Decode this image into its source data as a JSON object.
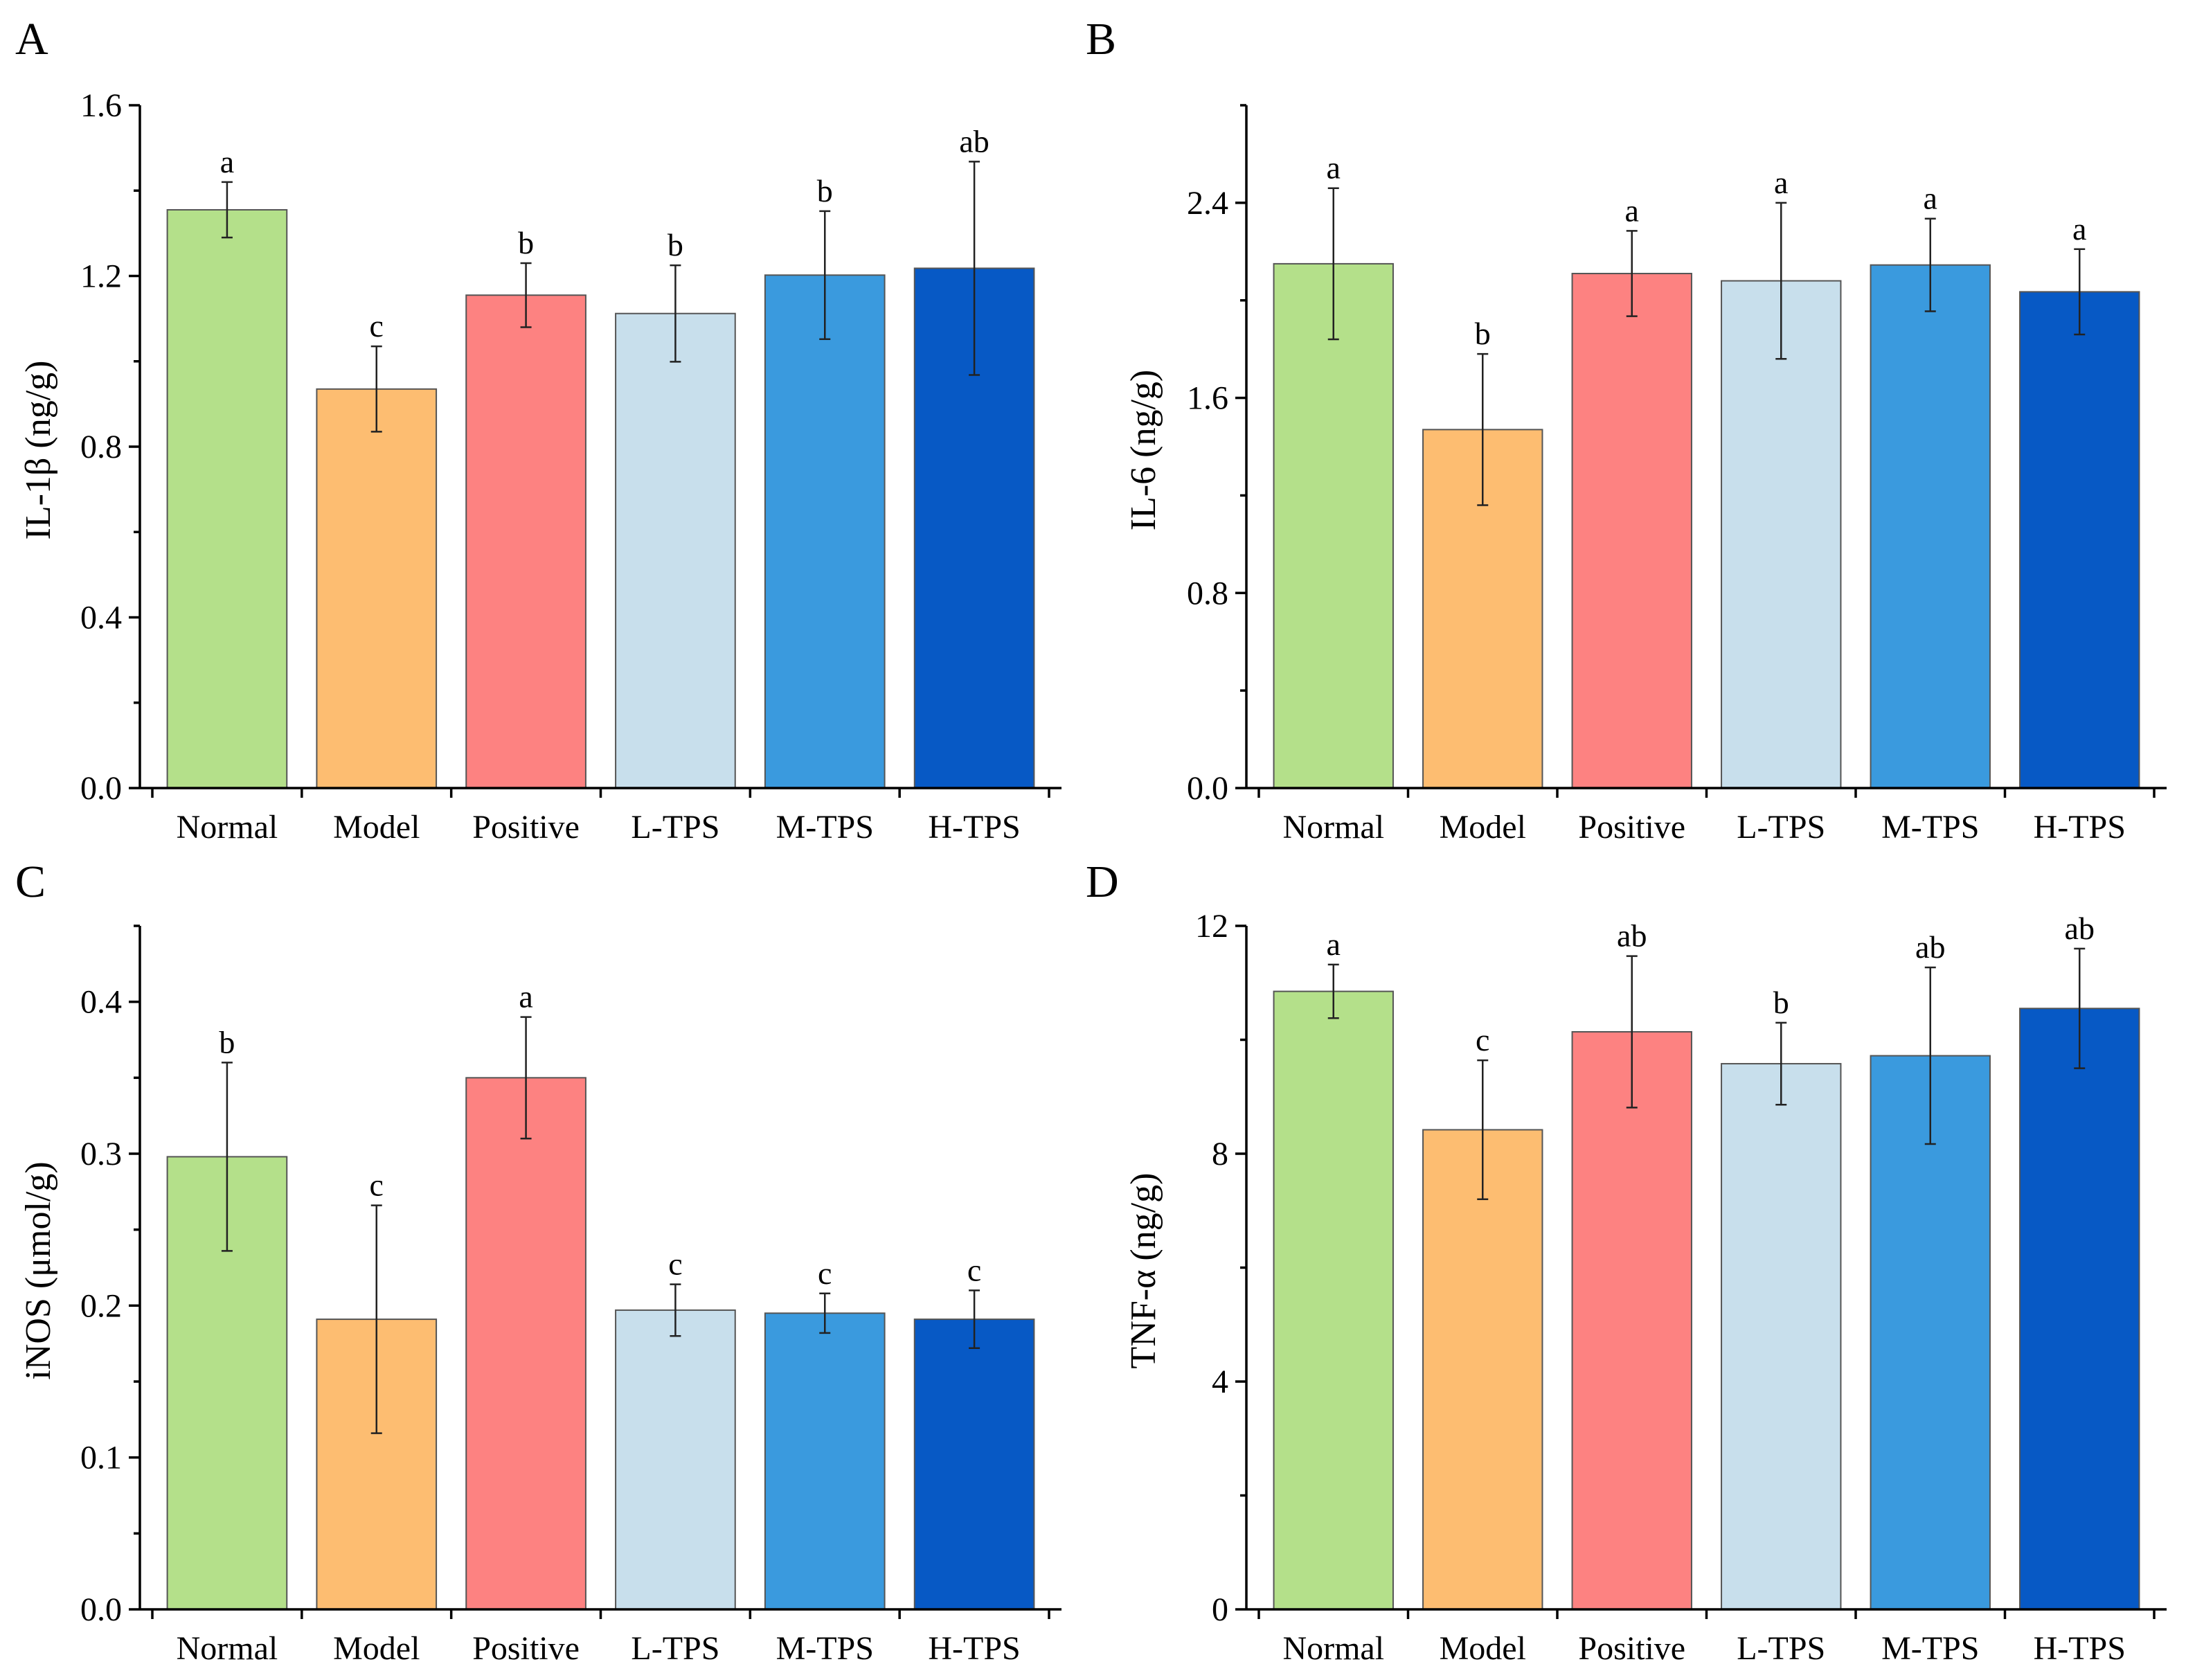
{
  "chart_data": [
    {
      "type": "bar",
      "panel": "A",
      "ylabel": "IL-1β (ng/g)",
      "categories": [
        "Normal",
        "Model",
        "Positive",
        "L-TPS",
        "M-TPS",
        "H-TPS"
      ],
      "values": [
        1.355,
        0.935,
        1.155,
        1.112,
        1.202,
        1.218
      ],
      "errors": [
        0.065,
        0.1,
        0.075,
        0.113,
        0.15,
        0.25
      ],
      "significance": [
        "a",
        "c",
        "b",
        "b",
        "b",
        "ab"
      ],
      "ylim": [
        0,
        1.6
      ],
      "yticks": [
        "0.0",
        "0.4",
        "0.8",
        "1.2",
        "1.6"
      ]
    },
    {
      "type": "bar",
      "panel": "B",
      "ylabel": "IL-6 (ng/g)",
      "categories": [
        "Normal",
        "Model",
        "Positive",
        "L-TPS",
        "M-TPS",
        "H-TPS"
      ],
      "values": [
        2.15,
        1.47,
        2.11,
        2.08,
        2.145,
        2.035
      ],
      "errors": [
        0.31,
        0.31,
        0.175,
        0.32,
        0.19,
        0.175
      ],
      "significance": [
        "a",
        "b",
        "a",
        "a",
        "a",
        "a"
      ],
      "ylim": [
        0,
        2.8
      ],
      "yticks": [
        "0.0",
        "0.8",
        "1.6",
        "2.4"
      ]
    },
    {
      "type": "bar",
      "panel": "C",
      "ylabel": "iNOS (μmol/g)",
      "categories": [
        "Normal",
        "Model",
        "Positive",
        "L-TPS",
        "M-TPS",
        "H-TPS"
      ],
      "values": [
        0.298,
        0.191,
        0.35,
        0.197,
        0.195,
        0.191
      ],
      "errors": [
        0.062,
        0.075,
        0.04,
        0.017,
        0.013,
        0.019
      ],
      "significance": [
        "b",
        "c",
        "a",
        "c",
        "c",
        "c"
      ],
      "ylim": [
        0,
        0.45
      ],
      "yticks": [
        "0.0",
        "0.1",
        "0.2",
        "0.3",
        "0.4"
      ]
    },
    {
      "type": "bar",
      "panel": "D",
      "ylabel": "TNF-α (ng/g)",
      "categories": [
        "Normal",
        "Model",
        "Positive",
        "L-TPS",
        "M-TPS",
        "H-TPS"
      ],
      "values": [
        10.85,
        8.42,
        10.14,
        9.58,
        9.72,
        10.55
      ],
      "errors": [
        0.47,
        1.22,
        1.33,
        0.72,
        1.55,
        1.05
      ],
      "significance": [
        "a",
        "c",
        "ab",
        "b",
        "ab",
        "ab"
      ],
      "ylim": [
        0,
        12
      ],
      "yticks": [
        "0",
        "4",
        "8",
        "12"
      ]
    }
  ],
  "colors": [
    "#b4e08a",
    "#fdbd71",
    "#fd8281",
    "#c8dfec",
    "#3a9ade",
    "#0759c5"
  ]
}
